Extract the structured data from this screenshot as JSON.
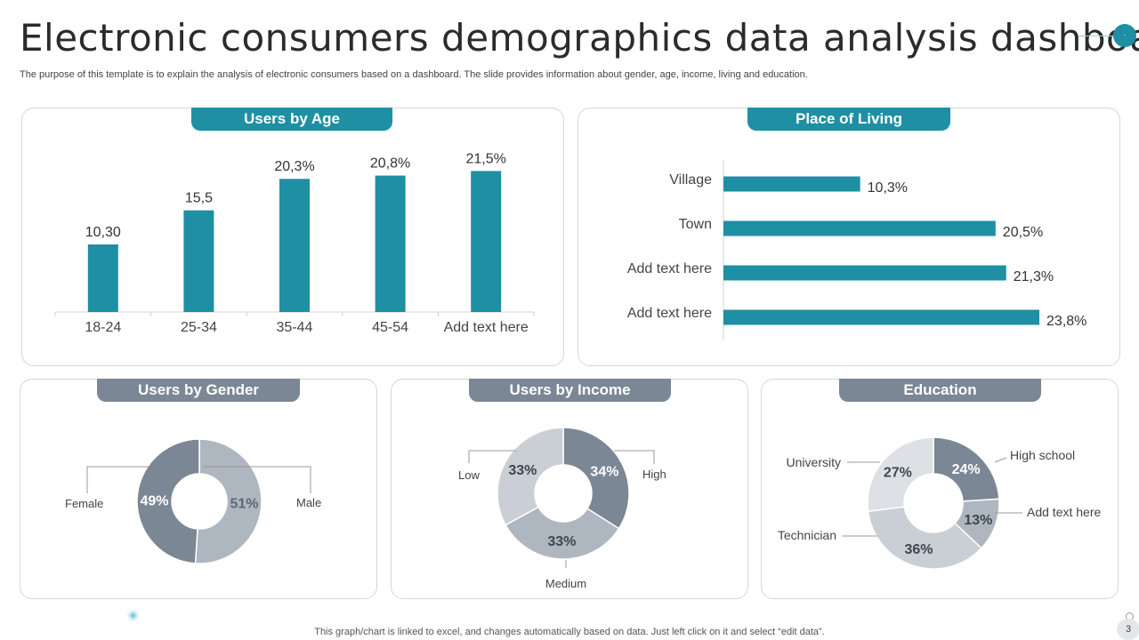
{
  "header": {
    "title": "Electronic consumers demographics data analysis dashboard",
    "subtitle": "The purpose of this template is to explain the analysis of electronic consumers based on a dashboard. The slide provides information about gender, age, income, living and education.",
    "corner_glyph": "·"
  },
  "panels": {
    "age": "Users by Age",
    "living": "Place of Living",
    "gender": "Users by Gender",
    "income": "Users by Income",
    "education": "Education"
  },
  "footer": {
    "note": "This graph/chart is linked to excel,  and changes automatically based on data. Just left click on it and select “edit data”.",
    "page": "3"
  },
  "colors": {
    "teal": "#1f8fa3",
    "slate": "#7b8794",
    "light": "#aeb6bf",
    "pale": "#c9cfd5",
    "lightest": "#dde1e5"
  },
  "chart_data": [
    {
      "id": "age",
      "type": "bar",
      "title": "Users by Age",
      "categories": [
        "18-24",
        "25-34",
        "35-44",
        "45-54",
        "Add text here"
      ],
      "values": [
        10.3,
        15.5,
        20.3,
        20.8,
        21.5
      ],
      "labels": [
        "10,30",
        "15,5",
        "20,3%",
        "20,8%",
        "21,5%"
      ],
      "ylim": [
        0,
        22.5
      ]
    },
    {
      "id": "living",
      "type": "bar",
      "orientation": "horizontal",
      "title": "Place of Living",
      "categories": [
        "Village",
        "Town",
        "Add text here",
        "Add text here"
      ],
      "values": [
        10.3,
        20.5,
        21.3,
        23.8
      ],
      "labels": [
        "10,3%",
        "20,5%",
        "21,3%",
        "23,8%"
      ],
      "xlim": [
        0,
        24.2
      ]
    },
    {
      "id": "gender",
      "type": "pie",
      "title": "Users by Gender",
      "slices": [
        {
          "name": "Male",
          "value": 51,
          "label": "51%"
        },
        {
          "name": "Female",
          "value": 49,
          "label": "49%"
        }
      ]
    },
    {
      "id": "income",
      "type": "pie",
      "title": "Users by Income",
      "slices": [
        {
          "name": "High",
          "value": 34,
          "label": "34%"
        },
        {
          "name": "Medium",
          "value": 33,
          "label": "33%"
        },
        {
          "name": "Low",
          "value": 33,
          "label": "33%"
        }
      ]
    },
    {
      "id": "education",
      "type": "pie",
      "title": "Education",
      "slices": [
        {
          "name": "High school",
          "value": 24,
          "label": "24%"
        },
        {
          "name": "Add text here",
          "value": 13,
          "label": "13%"
        },
        {
          "name": "Technician",
          "value": 36,
          "label": "36%"
        },
        {
          "name": "University",
          "value": 27,
          "label": "27%"
        }
      ]
    }
  ]
}
